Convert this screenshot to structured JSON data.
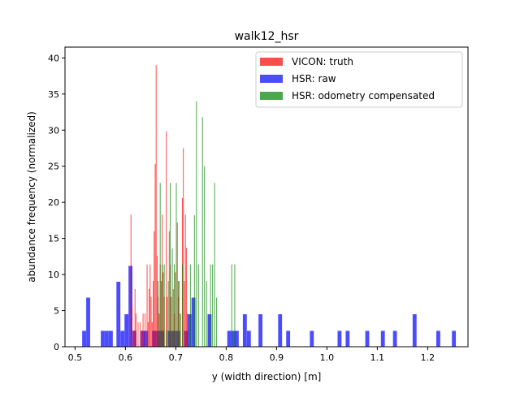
{
  "chart_data": {
    "type": "bar",
    "title": "walk12_hsr",
    "xlabel": "y (width direction) [m]",
    "ylabel": "abundance frequency (normalized)",
    "xlim": [
      0.48,
      1.28
    ],
    "ylim": [
      0,
      41.5
    ],
    "xticks": [
      "0.5",
      "0.6",
      "0.7",
      "0.8",
      "0.9",
      "1.0",
      "1.1",
      "1.2"
    ],
    "xtick_values": [
      0.5,
      0.6,
      0.7,
      0.8,
      0.9,
      1.0,
      1.1,
      1.2
    ],
    "yticks": [
      "0",
      "5",
      "10",
      "15",
      "20",
      "25",
      "30",
      "35",
      "40"
    ],
    "ytick_values": [
      0,
      5,
      10,
      15,
      20,
      25,
      30,
      35,
      40
    ],
    "grid": false,
    "legend_position": "top-right",
    "series": [
      {
        "name": "HSR: raw",
        "color": "#0000ff",
        "bin_width": 0.0078,
        "bins": [
          [
            0.518,
            2.2
          ],
          [
            0.526,
            6.8
          ],
          [
            0.555,
            2.2
          ],
          [
            0.563,
            2.2
          ],
          [
            0.571,
            2.2
          ],
          [
            0.586,
            9.0
          ],
          [
            0.594,
            2.2
          ],
          [
            0.602,
            4.5
          ],
          [
            0.61,
            11.2
          ],
          [
            0.618,
            2.2
          ],
          [
            0.634,
            2.2
          ],
          [
            0.641,
            2.2
          ],
          [
            0.657,
            2.2
          ],
          [
            0.665,
            2.2
          ],
          [
            0.673,
            2.2
          ],
          [
            0.688,
            2.2
          ],
          [
            0.696,
            2.2
          ],
          [
            0.704,
            2.2
          ],
          [
            0.72,
            2.2
          ],
          [
            0.727,
            4.5
          ],
          [
            0.735,
            6.8
          ],
          [
            0.767,
            4.5
          ],
          [
            0.806,
            2.2
          ],
          [
            0.814,
            2.2
          ],
          [
            0.821,
            2.2
          ],
          [
            0.837,
            4.5
          ],
          [
            0.845,
            2.2
          ],
          [
            0.868,
            4.5
          ],
          [
            0.907,
            4.5
          ],
          [
            0.923,
            2.2
          ],
          [
            0.97,
            2.2
          ],
          [
            1.025,
            2.2
          ],
          [
            1.041,
            2.2
          ],
          [
            1.08,
            2.2
          ],
          [
            1.111,
            2.2
          ],
          [
            1.135,
            2.2
          ],
          [
            1.174,
            4.5
          ],
          [
            1.221,
            2.2
          ],
          [
            1.252,
            2.2
          ]
        ]
      },
      {
        "name": "VICON: truth",
        "color": "#ff0000",
        "bin_width": 0.0016,
        "bins": [
          [
            0.611,
            18.3
          ],
          [
            0.613,
            5.7
          ],
          [
            0.617,
            2.3
          ],
          [
            0.619,
            8.0
          ],
          [
            0.621,
            4.6
          ],
          [
            0.625,
            3.4
          ],
          [
            0.629,
            3.4
          ],
          [
            0.633,
            2.3
          ],
          [
            0.635,
            4.6
          ],
          [
            0.639,
            4.6
          ],
          [
            0.643,
            11.4
          ],
          [
            0.645,
            3.4
          ],
          [
            0.647,
            8.0
          ],
          [
            0.649,
            11.4
          ],
          [
            0.651,
            6.9
          ],
          [
            0.653,
            3.4
          ],
          [
            0.655,
            9.1
          ],
          [
            0.657,
            16.0
          ],
          [
            0.659,
            25.3
          ],
          [
            0.661,
            39.0
          ],
          [
            0.663,
            12.6
          ],
          [
            0.665,
            6.9
          ],
          [
            0.667,
            4.6
          ],
          [
            0.669,
            11.4
          ],
          [
            0.671,
            9.1
          ],
          [
            0.673,
            18.3
          ],
          [
            0.675,
            10.3
          ],
          [
            0.677,
            6.9
          ],
          [
            0.681,
            29.8
          ],
          [
            0.683,
            6.9
          ],
          [
            0.687,
            16.0
          ],
          [
            0.689,
            11.4
          ],
          [
            0.691,
            6.9
          ],
          [
            0.695,
            8.0
          ],
          [
            0.697,
            4.6
          ],
          [
            0.699,
            10.3
          ],
          [
            0.703,
            17.2
          ],
          [
            0.705,
            6.9
          ],
          [
            0.707,
            9.1
          ],
          [
            0.709,
            4.6
          ],
          [
            0.713,
            20.6
          ],
          [
            0.715,
            27.5
          ],
          [
            0.717,
            9.1
          ],
          [
            0.719,
            18.3
          ],
          [
            0.721,
            13.7
          ],
          [
            0.723,
            4.6
          ]
        ]
      },
      {
        "name": "HSR: odometry compensated",
        "color": "#008000",
        "bin_width": 0.0016,
        "bins": [
          [
            0.665,
            9.1
          ],
          [
            0.669,
            22.7
          ],
          [
            0.673,
            11.4
          ],
          [
            0.677,
            11.4
          ],
          [
            0.681,
            2.3
          ],
          [
            0.685,
            9.1
          ],
          [
            0.689,
            22.7
          ],
          [
            0.693,
            13.6
          ],
          [
            0.697,
            11.4
          ],
          [
            0.701,
            22.7
          ],
          [
            0.705,
            9.1
          ],
          [
            0.709,
            4.5
          ],
          [
            0.713,
            11.4
          ],
          [
            0.729,
            11.4
          ],
          [
            0.737,
            18.2
          ],
          [
            0.741,
            34.0
          ],
          [
            0.745,
            11.4
          ],
          [
            0.753,
            31.8
          ],
          [
            0.757,
            25.0
          ],
          [
            0.761,
            9.1
          ],
          [
            0.769,
            11.4
          ],
          [
            0.773,
            11.4
          ],
          [
            0.777,
            22.7
          ],
          [
            0.781,
            6.8
          ],
          [
            0.811,
            11.4
          ],
          [
            0.817,
            11.4
          ]
        ]
      }
    ],
    "legend_entries": [
      {
        "name": "VICON: truth",
        "color": "#ff0000"
      },
      {
        "name": "HSR: raw",
        "color": "#0000ff"
      },
      {
        "name": "HSR: odometry compensated",
        "color": "#008000"
      }
    ]
  }
}
